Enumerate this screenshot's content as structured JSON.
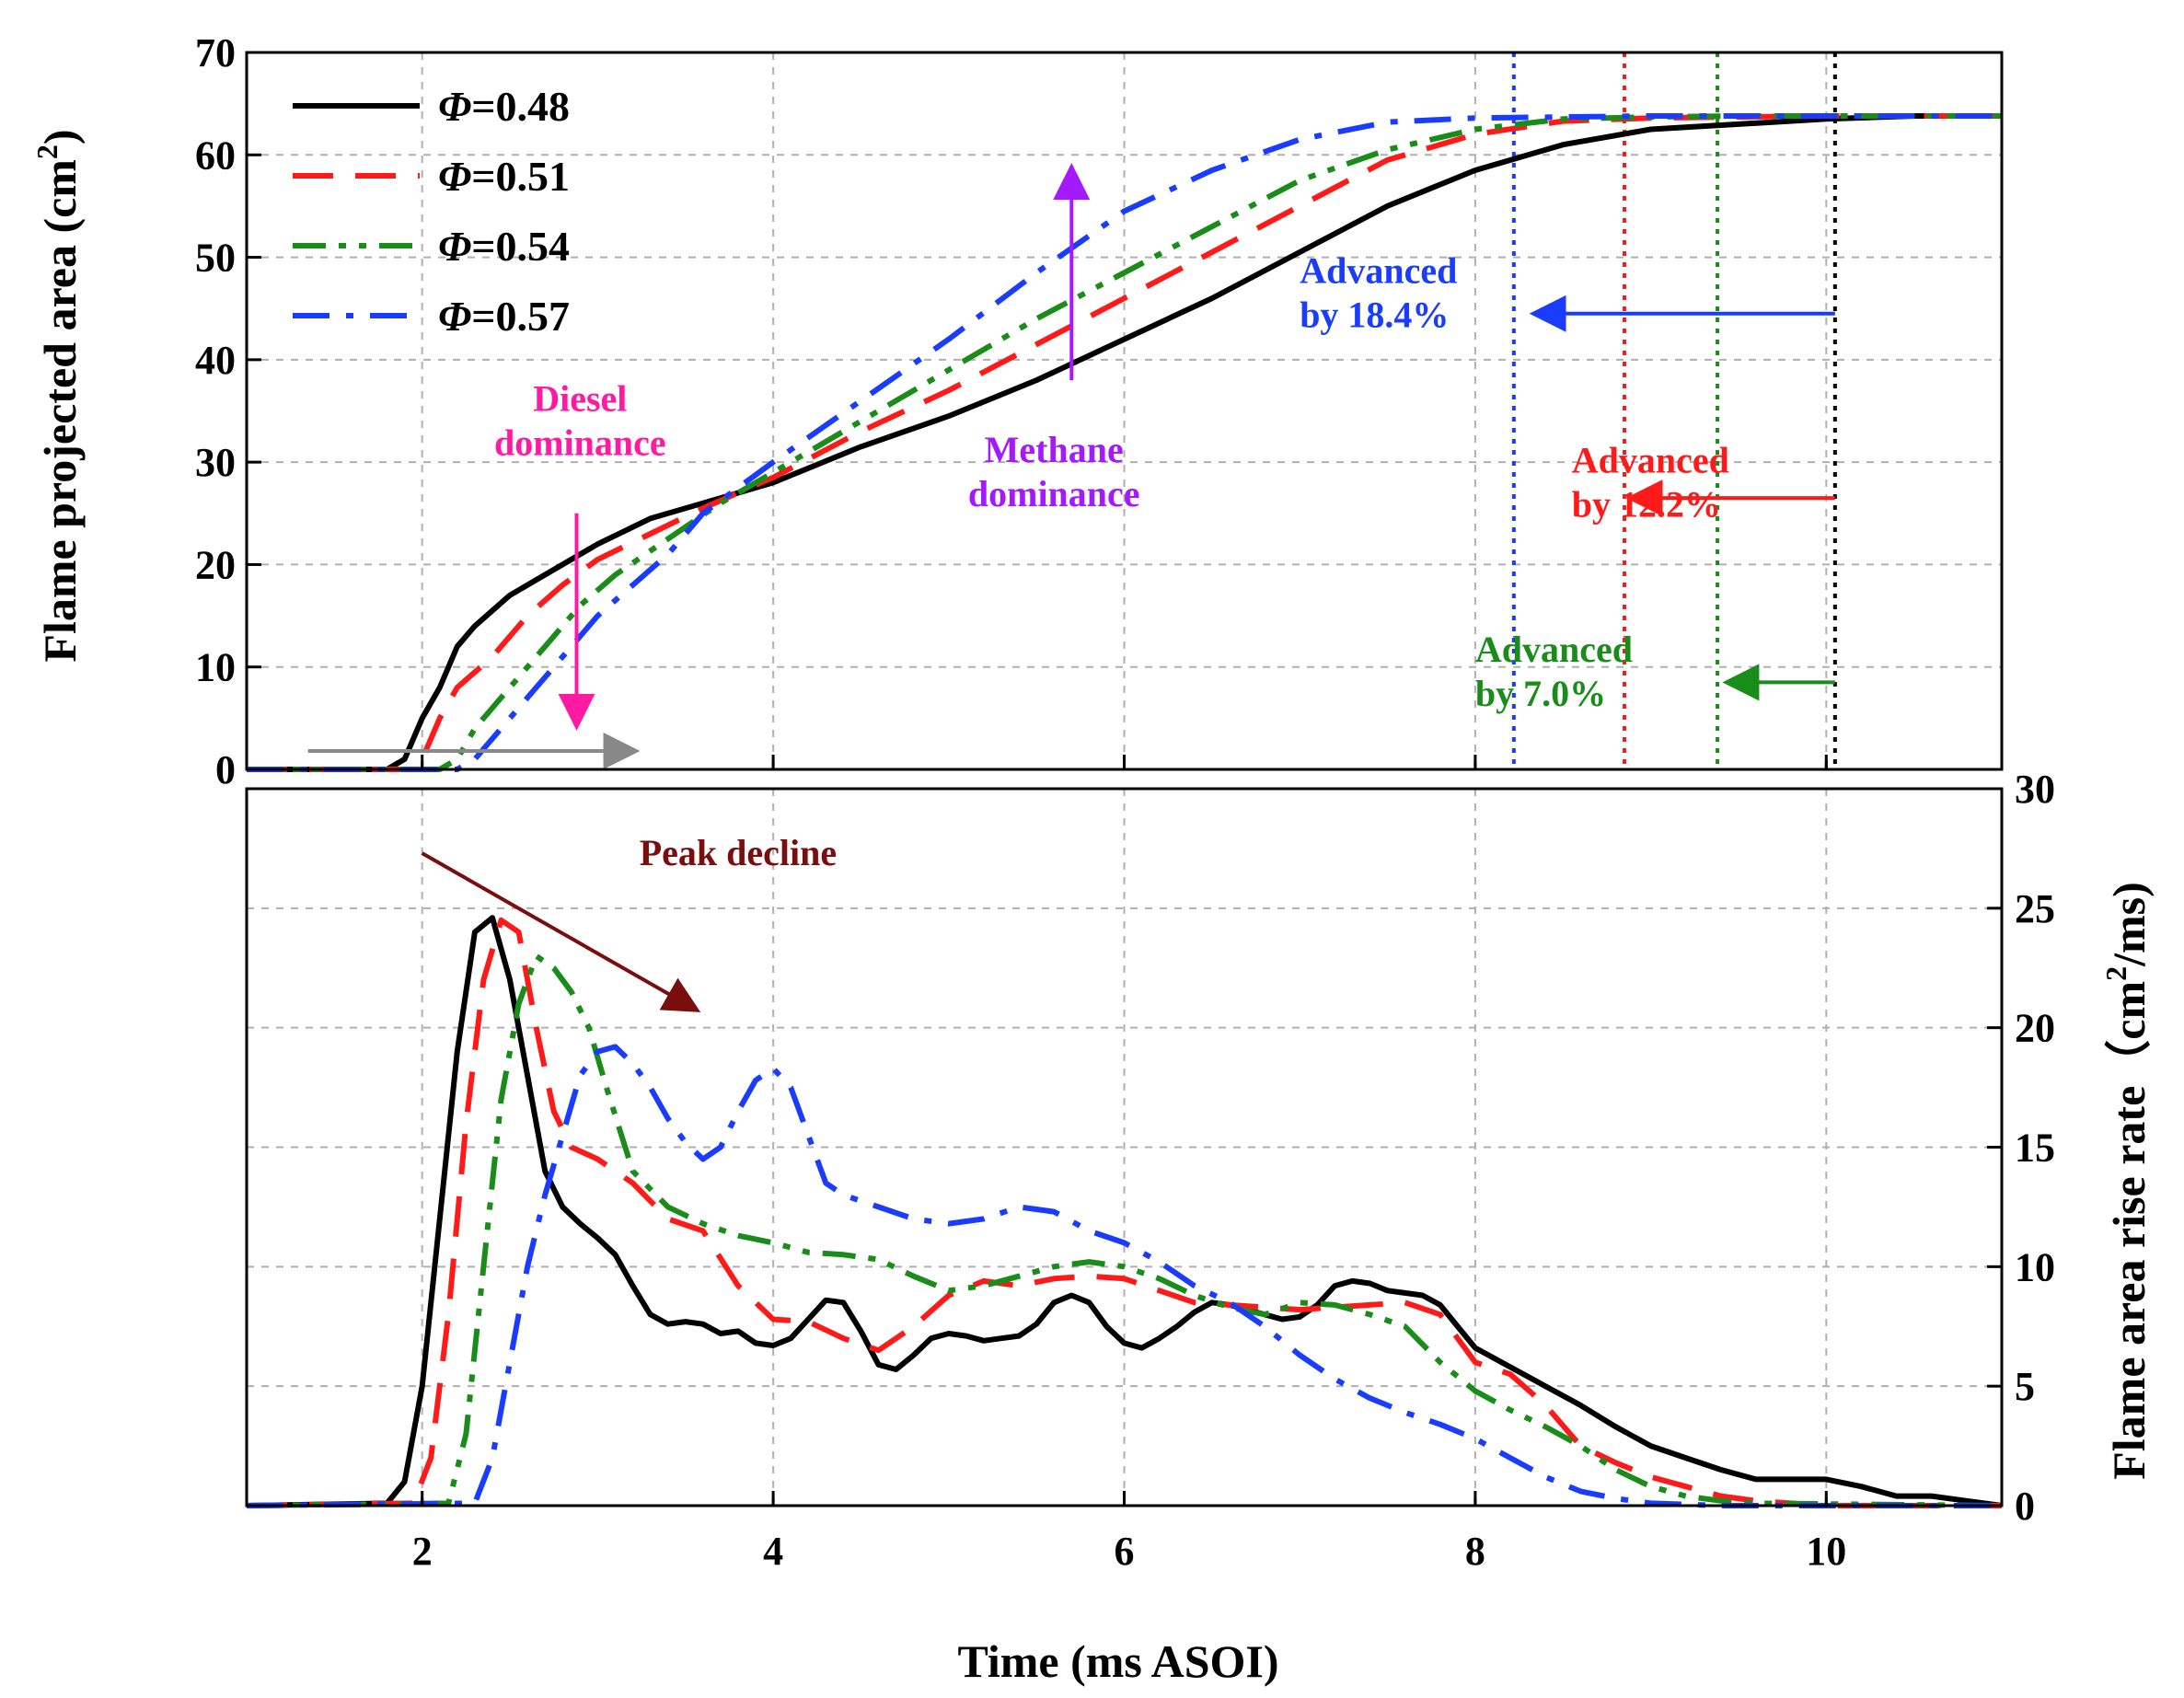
{
  "chart_data": {
    "type": "line",
    "shared_x_axis": {
      "label": "Time (ms ASOI)",
      "range": [
        1,
        11
      ],
      "ticks": [
        2,
        4,
        6,
        8,
        10
      ],
      "grid": true
    },
    "panels": [
      {
        "name": "flame-area",
        "ylabel": "Flame projected area (cm",
        "ylabel_sup": "2",
        "ylabel_close": ")",
        "y_axis_side": "left",
        "ylim": [
          0,
          70
        ],
        "yticks": [
          0,
          10,
          20,
          30,
          40,
          50,
          60,
          70
        ],
        "series": [
          {
            "name": "0.48",
            "color": "#000000",
            "dash": "solid",
            "x": [
              1,
              1.8,
              1.9,
              2.0,
              2.1,
              2.2,
              2.3,
              2.5,
              2.8,
              3.0,
              3.3,
              3.6,
              4.0,
              4.5,
              5.0,
              5.5,
              6.0,
              6.5,
              7.0,
              7.5,
              8.0,
              8.5,
              9.0,
              9.5,
              10.0,
              10.5,
              11
            ],
            "y": [
              0,
              0,
              1,
              5,
              8,
              12,
              14,
              17,
              20,
              22,
              24.5,
              26,
              28,
              31.5,
              34.5,
              38,
              42,
              46,
              50.5,
              55,
              58.5,
              61,
              62.5,
              63,
              63.5,
              63.8,
              63.8
            ]
          },
          {
            "name": "0.51",
            "color": "#ff1a1a",
            "dash": "dashed",
            "x": [
              1,
              1.95,
              2.0,
              2.1,
              2.2,
              2.4,
              2.6,
              2.8,
              3.0,
              3.3,
              3.6,
              4.0,
              4.5,
              5.0,
              5.5,
              6.0,
              6.5,
              7.0,
              7.5,
              8.0,
              8.5,
              9.0,
              9.5,
              10.0,
              11
            ],
            "y": [
              0,
              0,
              1,
              5,
              8,
              11,
              15,
              18,
              20.5,
              23,
              25.5,
              28.5,
              33,
              37,
              41.5,
              46,
              50.5,
              55,
              59.5,
              62,
              63.3,
              63.6,
              63.7,
              63.8,
              63.8
            ]
          },
          {
            "name": "0.54",
            "color": "#1a8c1a",
            "dash": "dashdotdot",
            "x": [
              1,
              2.1,
              2.2,
              2.3,
              2.5,
              2.7,
              2.9,
              3.1,
              3.4,
              3.7,
              4.0,
              4.5,
              5.0,
              5.5,
              6.0,
              6.5,
              7.0,
              7.5,
              8.0,
              8.5,
              9.0,
              9.5,
              10.0,
              11
            ],
            "y": [
              0,
              0,
              1,
              4,
              8,
              12,
              16,
              19,
              22.5,
              26,
              29,
              34,
              39,
              44,
              48.5,
              53,
              57.5,
              60.5,
              62.5,
              63.5,
              63.7,
              63.8,
              63.8,
              63.8
            ]
          },
          {
            "name": "0.57",
            "color": "#1a3cff",
            "dash": "dashdot",
            "x": [
              1,
              2.2,
              2.3,
              2.4,
              2.6,
              2.8,
              3.0,
              3.2,
              3.4,
              3.6,
              4.0,
              4.5,
              5.0,
              5.5,
              6.0,
              6.5,
              7.0,
              7.5,
              8.0,
              8.5,
              9.0,
              11
            ],
            "y": [
              0,
              0,
              1,
              3,
              7,
              11,
              15,
              18,
              21,
              25,
              30,
              36,
              42,
              48.5,
              54.5,
              58.5,
              61.5,
              63.2,
              63.6,
              63.7,
              63.8,
              63.8
            ]
          }
        ],
        "vertical_markers": [
          {
            "x": 8.22,
            "color": "#1a3cff"
          },
          {
            "x": 8.85,
            "color": "#ff1a1a"
          },
          {
            "x": 9.38,
            "color": "#1a8c1a"
          },
          {
            "x": 10.05,
            "color": "#000000"
          }
        ],
        "arrows": [
          {
            "from": [
              1.35,
              1.8
            ],
            "to": [
              3.2,
              1.8
            ],
            "color": "#888888"
          },
          {
            "from": [
              2.88,
              25
            ],
            "to": [
              2.88,
              4.5
            ],
            "color": "#ff1aa3"
          },
          {
            "from": [
              5.7,
              38
            ],
            "to": [
              5.7,
              58.5
            ],
            "color": "#a31aff"
          },
          {
            "from": [
              10.05,
              44.5
            ],
            "to": [
              8.35,
              44.5
            ],
            "color": "#1a3cff"
          },
          {
            "from": [
              10.05,
              26.5
            ],
            "to": [
              8.9,
              26.5
            ],
            "color": "#ff1a1a"
          },
          {
            "from": [
              10.05,
              8.5
            ],
            "to": [
              9.45,
              8.5
            ],
            "color": "#1a8c1a"
          }
        ],
        "annotations": [
          {
            "lines": [
              "Diesel",
              "dominance"
            ],
            "x": 2.9,
            "y": 35,
            "color": "#ff1aa3",
            "anchor": "middle"
          },
          {
            "lines": [
              "Methane",
              "dominance"
            ],
            "x": 5.6,
            "y": 30,
            "color": "#a31aff",
            "anchor": "middle"
          },
          {
            "lines": [
              "Advanced",
              "by 18.4%"
            ],
            "x": 7.0,
            "y": 47.5,
            "color": "#1a3cff",
            "anchor": "start"
          },
          {
            "lines": [
              "Advanced",
              "by 12.2%"
            ],
            "x": 8.55,
            "y": 29,
            "color": "#ff1a1a",
            "anchor": "start"
          },
          {
            "lines": [
              "Advanced",
              "by 7.0%"
            ],
            "x": 8.0,
            "y": 10.5,
            "color": "#1a8c1a",
            "anchor": "start"
          }
        ]
      },
      {
        "name": "rise-rate",
        "ylabel": "Flame area rise rate（cm",
        "ylabel_sup": "2",
        "ylabel_close": "/ms)",
        "y_axis_side": "right",
        "ylim": [
          0,
          30
        ],
        "yticks": [
          0,
          5,
          10,
          15,
          20,
          25,
          30
        ],
        "series": [
          {
            "name": "0.48",
            "color": "#000000",
            "dash": "solid",
            "x": [
              1,
              1.8,
              1.9,
              2.0,
              2.1,
              2.2,
              2.3,
              2.4,
              2.5,
              2.6,
              2.7,
              2.8,
              2.9,
              3.0,
              3.1,
              3.2,
              3.3,
              3.4,
              3.5,
              3.6,
              3.7,
              3.8,
              3.9,
              4.0,
              4.1,
              4.2,
              4.3,
              4.4,
              4.5,
              4.6,
              4.7,
              4.8,
              4.9,
              5.0,
              5.1,
              5.2,
              5.3,
              5.4,
              5.5,
              5.6,
              5.7,
              5.8,
              5.9,
              6.0,
              6.1,
              6.2,
              6.3,
              6.4,
              6.5,
              6.6,
              6.7,
              6.8,
              6.9,
              7.0,
              7.1,
              7.2,
              7.3,
              7.4,
              7.5,
              7.6,
              7.7,
              7.8,
              7.9,
              8.0,
              8.2,
              8.4,
              8.6,
              8.8,
              9.0,
              9.2,
              9.4,
              9.6,
              9.8,
              10.0,
              10.2,
              10.4,
              10.6,
              10.8,
              11
            ],
            "y": [
              0,
              0.1,
              1,
              5,
              12,
              19,
              24,
              24.6,
              22,
              18,
              14,
              12.5,
              11.8,
              11.2,
              10.5,
              9.2,
              8,
              7.6,
              7.7,
              7.6,
              7.2,
              7.3,
              6.8,
              6.7,
              7.0,
              7.8,
              8.6,
              8.5,
              7.3,
              5.9,
              5.7,
              6.3,
              7.0,
              7.2,
              7.1,
              6.9,
              7.0,
              7.1,
              7.6,
              8.5,
              8.8,
              8.5,
              7.5,
              6.8,
              6.6,
              7.0,
              7.5,
              8.1,
              8.5,
              8.4,
              8.2,
              8.0,
              7.8,
              7.9,
              8.4,
              9.2,
              9.4,
              9.3,
              9.0,
              8.9,
              8.8,
              8.4,
              7.5,
              6.6,
              5.8,
              5.0,
              4.2,
              3.3,
              2.5,
              2.0,
              1.5,
              1.1,
              1.1,
              1.1,
              0.8,
              0.4,
              0.4,
              0.2,
              0
            ]
          },
          {
            "name": "0.51",
            "color": "#ff1a1a",
            "dash": "dashed",
            "x": [
              1,
              1.95,
              2.05,
              2.15,
              2.25,
              2.35,
              2.45,
              2.55,
              2.65,
              2.75,
              2.85,
              3.0,
              3.2,
              3.4,
              3.6,
              3.8,
              4.0,
              4.2,
              4.4,
              4.6,
              4.8,
              5.0,
              5.2,
              5.4,
              5.6,
              5.8,
              6.0,
              6.2,
              6.4,
              6.6,
              6.8,
              7.0,
              7.2,
              7.4,
              7.6,
              7.8,
              8.0,
              8.2,
              8.4,
              8.6,
              8.8,
              9.0,
              9.2,
              9.4,
              9.6,
              9.8,
              10.0,
              11
            ],
            "y": [
              0,
              0.1,
              2,
              8,
              16,
              22,
              24.5,
              24,
              20,
              16.5,
              15,
              14.5,
              13.5,
              12,
              11.5,
              9.2,
              7.8,
              7.7,
              7.0,
              6.5,
              7.5,
              8.8,
              9.4,
              9.2,
              9.5,
              9.6,
              9.5,
              9.0,
              8.5,
              8.4,
              8.3,
              8.2,
              8.3,
              8.4,
              8.5,
              8.0,
              6.0,
              5.5,
              4.2,
              2.5,
              1.8,
              1.2,
              0.8,
              0.4,
              0.2,
              0.1,
              0,
              0
            ]
          },
          {
            "name": "0.54",
            "color": "#1a8c1a",
            "dash": "dashdotdot",
            "x": [
              1,
              2.15,
              2.25,
              2.35,
              2.45,
              2.55,
              2.65,
              2.75,
              2.85,
              2.95,
              3.05,
              3.2,
              3.4,
              3.6,
              3.8,
              4.0,
              4.2,
              4.4,
              4.6,
              4.8,
              5.0,
              5.2,
              5.4,
              5.6,
              5.8,
              6.0,
              6.2,
              6.4,
              6.6,
              6.8,
              7.0,
              7.2,
              7.4,
              7.6,
              7.8,
              8.0,
              8.2,
              8.4,
              8.6,
              8.8,
              9.0,
              9.2,
              9.4,
              9.6,
              11
            ],
            "y": [
              0,
              0.1,
              3,
              10,
              17,
              21,
              23,
              22.5,
              21.5,
              20,
              17.5,
              14,
              12.5,
              11.8,
              11.3,
              11,
              10.6,
              10.5,
              10.3,
              9.6,
              9.0,
              9.2,
              9.6,
              10,
              10.2,
              10,
              9.5,
              8.8,
              8.3,
              8.0,
              8.5,
              8.4,
              8.0,
              7.5,
              6.0,
              4.8,
              4.0,
              3.3,
              2.5,
              1.5,
              0.8,
              0.4,
              0.2,
              0.1,
              0
            ]
          },
          {
            "name": "0.57",
            "color": "#1a3cff",
            "dash": "dashdot",
            "x": [
              1,
              2.3,
              2.4,
              2.5,
              2.6,
              2.7,
              2.8,
              2.9,
              3.0,
              3.1,
              3.2,
              3.3,
              3.4,
              3.5,
              3.6,
              3.7,
              3.8,
              3.9,
              4.0,
              4.1,
              4.2,
              4.3,
              4.4,
              4.6,
              4.8,
              5.0,
              5.2,
              5.4,
              5.6,
              5.8,
              6.0,
              6.2,
              6.4,
              6.6,
              6.8,
              7.0,
              7.2,
              7.4,
              7.6,
              7.8,
              8.0,
              8.2,
              8.4,
              8.6,
              8.8,
              9.0,
              9.2,
              9.4,
              11
            ],
            "y": [
              0,
              0.1,
              2,
              6,
              10,
              13,
              15.5,
              18,
              19,
              19.2,
              18.5,
              17.5,
              16.2,
              15.2,
              14.5,
              15.0,
              16.5,
              17.8,
              18.3,
              17.5,
              15.5,
              13.5,
              13.0,
              12.5,
              12.0,
              11.8,
              12.0,
              12.5,
              12.3,
              11.5,
              11.0,
              10.2,
              9.2,
              8.5,
              7.5,
              6.3,
              5.3,
              4.5,
              3.9,
              3.4,
              2.8,
              2.0,
              1.2,
              0.6,
              0.3,
              0.1,
              0.05,
              0,
              0
            ]
          }
        ],
        "arrows": [
          {
            "from": [
              2.0,
              27.3
            ],
            "to": [
              3.55,
              20.8
            ],
            "color": "#7a0d0d"
          }
        ],
        "annotations": [
          {
            "lines": [
              "Peak decline"
            ],
            "x": 3.8,
            "y": 26.8,
            "color": "#7a0d0d",
            "anchor": "middle"
          }
        ]
      }
    ],
    "legend": {
      "position": "top-left",
      "symbol": "Φ",
      "entries": [
        "=0.48",
        "=0.51",
        "=0.54",
        "=0.57"
      ]
    }
  }
}
